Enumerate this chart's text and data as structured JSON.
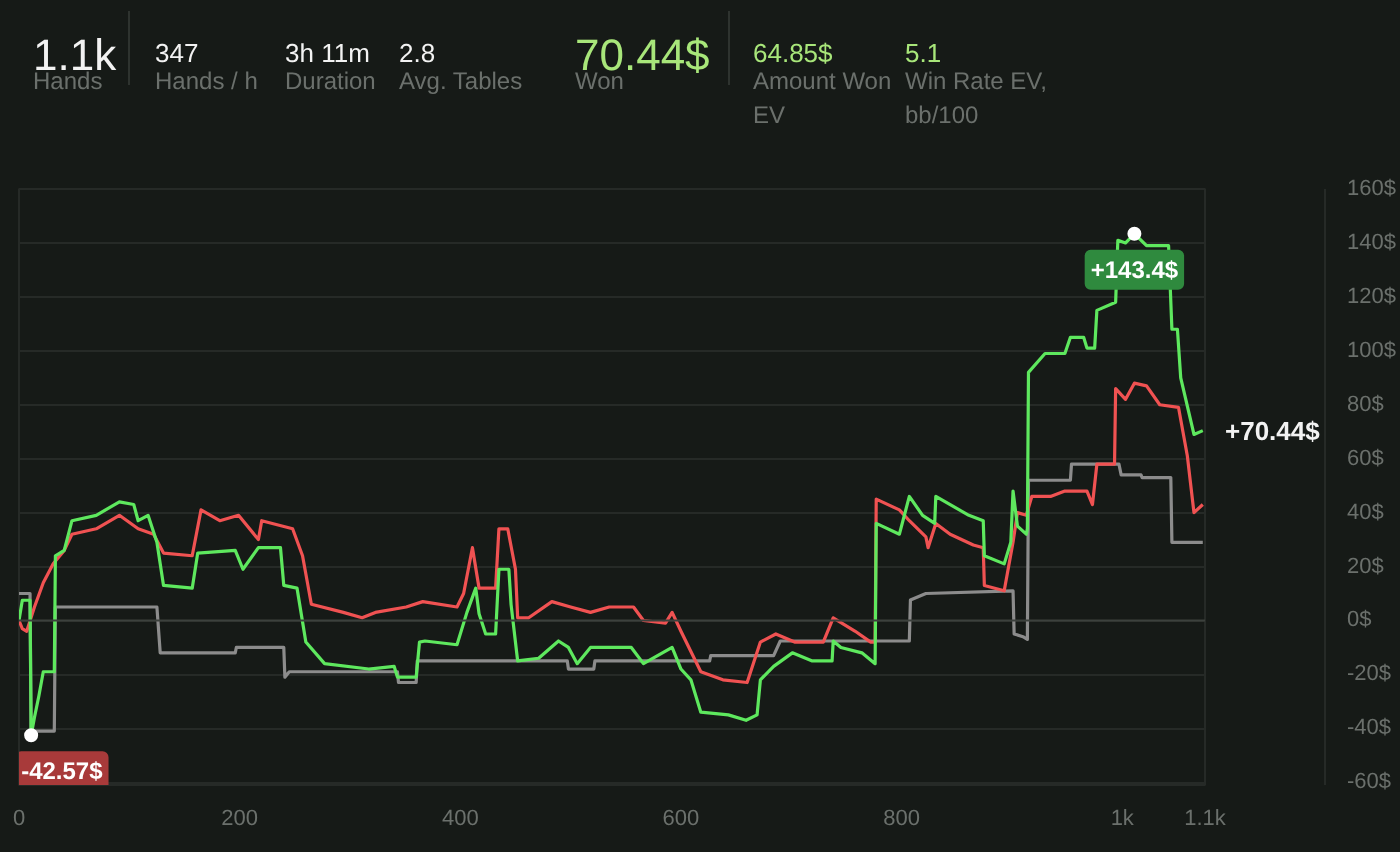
{
  "chart_data": [
    {
      "type": "other",
      "annotations": [
        "1.1k",
        "Hands",
        "347",
        "Hands / h",
        "3h 11m",
        "Duration",
        "2.8",
        "Avg. Tables",
        "70.44$",
        "Won",
        "64.85$",
        "Amount Won EV",
        "5.1",
        "Win Rate EV, bb/100"
      ]
    },
    {
      "type": "line",
      "xlim": [
        0,
        1075
      ],
      "ylim": [
        -61,
        160
      ],
      "xticks": [
        0,
        200,
        400,
        600,
        800,
        {
          "value": 1000,
          "label": "1k"
        },
        {
          "value": 1075,
          "label": "1.1k"
        }
      ],
      "yticks": [
        {
          "value": -60,
          "label": "-60$"
        },
        {
          "value": -40,
          "label": "-40$"
        },
        {
          "value": -20,
          "label": "-20$"
        },
        {
          "value": 0,
          "label": "0$"
        },
        {
          "value": 20,
          "label": "20$"
        },
        {
          "value": 40,
          "label": "40$"
        },
        {
          "value": 60,
          "label": "60$"
        },
        {
          "value": 80,
          "label": "80$"
        },
        {
          "value": 100,
          "label": "100$"
        },
        {
          "value": 120,
          "label": "120$"
        },
        {
          "value": 140,
          "label": "140$"
        },
        {
          "value": 160,
          "label": "160$"
        }
      ],
      "grid": "y",
      "ref_lines": [
        {
          "axis": "y",
          "value": 0,
          "color": "#3c413d"
        }
      ],
      "annotations": [
        {
          "text": "-42.57$",
          "x": 11,
          "y": -42.57
        },
        {
          "text": "+143.4$",
          "x": 1011,
          "y": 143.4
        },
        {
          "text": "+70.44$",
          "x": 1073,
          "y": 70.44
        }
      ],
      "series": [
        {
          "color": "#8c8c8c",
          "x": [
            0,
            10,
            11,
            32,
            33,
            125,
            128,
            196,
            197,
            240,
            241,
            245,
            343,
            344,
            360,
            361,
            497,
            498,
            521,
            522,
            626,
            627,
            684,
            690,
            807,
            808,
            822,
            901,
            902,
            910,
            914,
            915,
            953,
            954,
            997,
            999,
            1017,
            1018,
            1044,
            1045,
            1073
          ],
          "values": [
            10,
            10,
            -41,
            -41,
            5,
            5,
            -12,
            -12,
            -10,
            -10,
            -21,
            -19,
            -19,
            -23,
            -23,
            -15,
            -15,
            -18,
            -18,
            -15,
            -15,
            -13,
            -13,
            -7.6,
            -7.6,
            7.6,
            10,
            11,
            -5,
            -6,
            -7,
            52,
            52,
            58,
            58,
            54,
            54,
            53,
            53,
            29,
            29
          ]
        },
        {
          "color": "#f05252",
          "x": [
            0,
            3,
            7,
            14,
            22,
            31,
            41,
            48,
            70,
            91,
            108,
            122,
            131,
            157,
            165,
            182,
            199,
            217,
            220,
            248,
            257,
            265,
            294,
            311,
            323,
            351,
            366,
            397,
            403,
            411,
            417,
            423,
            432,
            435,
            443,
            450,
            452,
            462,
            483,
            500,
            518,
            535,
            557,
            566,
            586,
            592,
            600,
            618,
            638,
            660,
            672,
            686,
            703,
            729,
            738,
            758,
            772,
            776,
            777,
            798,
            807,
            822,
            824,
            831,
            844,
            865,
            874,
            875,
            893,
            901,
            905,
            913,
            918,
            935,
            948,
            968,
            973,
            977,
            993,
            994,
            1003,
            1011,
            1022,
            1034,
            1051,
            1059,
            1065,
            1073
          ],
          "values": [
            0,
            -3,
            -4,
            5,
            14,
            21,
            26,
            32,
            34,
            39,
            34,
            32,
            25,
            24,
            41,
            37,
            39,
            30,
            37,
            34,
            24,
            6,
            3,
            1,
            3,
            5,
            7,
            5,
            10,
            27,
            12,
            12,
            12,
            34,
            34,
            19,
            1,
            1,
            7,
            5,
            3,
            5,
            5,
            0,
            -1,
            3,
            -4,
            -19,
            -22,
            -23,
            -8,
            -5,
            -8,
            -8,
            1,
            -4,
            -8,
            -8,
            45,
            41,
            37,
            31,
            27,
            36,
            32,
            28,
            27,
            13,
            11,
            29,
            40,
            39,
            46,
            46,
            48,
            48,
            43,
            58,
            58,
            86,
            82,
            88,
            87,
            80,
            79,
            61,
            40,
            43
          ]
        },
        {
          "color": "#5ee85e",
          "x": [
            0,
            3,
            10,
            11,
            14,
            18,
            22,
            32,
            33,
            41,
            48,
            70,
            91,
            104,
            108,
            117,
            125,
            131,
            157,
            162,
            196,
            203,
            217,
            237,
            240,
            252,
            260,
            277,
            317,
            340,
            343,
            360,
            363,
            368,
            397,
            406,
            414,
            417,
            423,
            432,
            435,
            444,
            446,
            452,
            471,
            489,
            498,
            506,
            518,
            555,
            566,
            592,
            600,
            609,
            618,
            643,
            659,
            669,
            672,
            684,
            701,
            719,
            737,
            738,
            745,
            764,
            776,
            777,
            798,
            807,
            819,
            830,
            831,
            848,
            861,
            874,
            875,
            893,
            899,
            901,
            905,
            913,
            914,
            915,
            930,
            948,
            953,
            965,
            968,
            975,
            977,
            994,
            996,
            1003,
            1011,
            1022,
            1042,
            1045,
            1050,
            1053,
            1065,
            1073
          ],
          "values": [
            0,
            7.5,
            7.5,
            -42.6,
            -36,
            -28,
            -19,
            -19,
            24,
            26,
            37,
            39,
            44,
            43,
            37,
            39,
            29,
            13,
            12,
            25,
            26,
            19,
            27,
            27,
            13,
            12,
            -8,
            -16,
            -18,
            -17,
            -21,
            -21,
            -8,
            -7.6,
            -9,
            3,
            12,
            2.5,
            -5,
            -5,
            19,
            19,
            6,
            -15,
            -14,
            -7.6,
            -10,
            -16,
            -10,
            -10,
            -16,
            -10,
            -18,
            -22,
            -34,
            -35,
            -37,
            -35,
            -22,
            -17,
            -12,
            -15,
            -15,
            -7.6,
            -10,
            -12,
            -16,
            36,
            32,
            46,
            39,
            36,
            46,
            42,
            39,
            37,
            24,
            21,
            29,
            48,
            35,
            32,
            34,
            92,
            99,
            99,
            105,
            105,
            101,
            101,
            115,
            118,
            141,
            140,
            143.4,
            139,
            139,
            108,
            108,
            90,
            69,
            70.4
          ]
        }
      ]
    }
  ]
}
